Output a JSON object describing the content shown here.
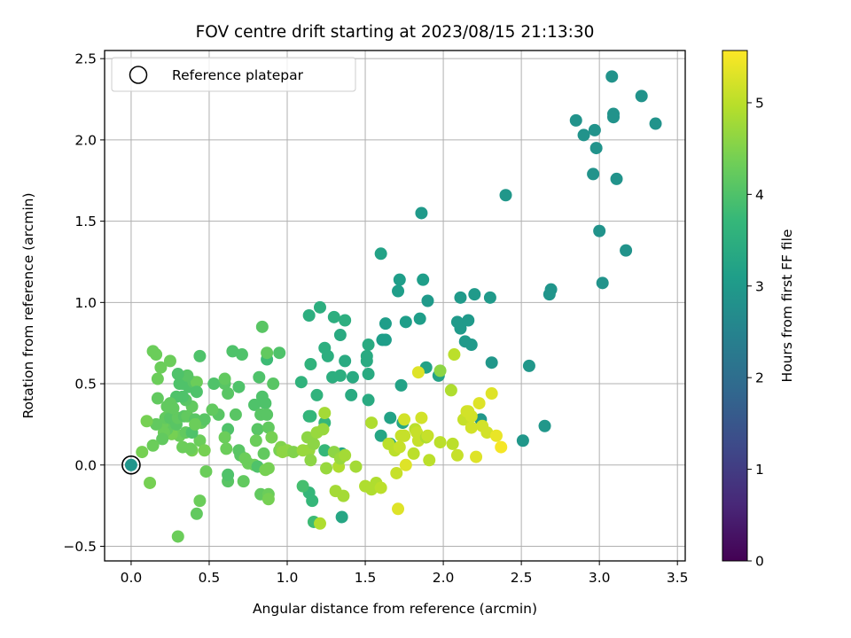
{
  "chart_data": {
    "type": "scatter",
    "title": "FOV centre drift starting at 2023/08/15 21:13:30",
    "xlabel": "Angular distance from reference (arcmin)",
    "ylabel": "Rotation from reference (arcmin)",
    "xlim": [
      -0.17,
      3.55
    ],
    "ylim": [
      -0.59,
      2.55
    ],
    "xticks": [
      0.0,
      0.5,
      1.0,
      1.5,
      2.0,
      2.5,
      3.0,
      3.5
    ],
    "xtick_labels": [
      "0.0",
      "0.5",
      "1.0",
      "1.5",
      "2.0",
      "2.5",
      "3.0",
      "3.5"
    ],
    "yticks": [
      -0.5,
      0.0,
      0.5,
      1.0,
      1.5,
      2.0,
      2.5
    ],
    "ytick_labels": [
      "−0.5",
      "0.0",
      "0.5",
      "1.0",
      "1.5",
      "2.0",
      "2.5"
    ],
    "grid": true,
    "legend": {
      "location": "upper-left",
      "entries": [
        "Reference platepar"
      ]
    },
    "reference_point": {
      "x": 0.0,
      "y": 0.0,
      "hours": 2.9
    },
    "colorbar": {
      "label": "Hours from first FF file",
      "min": 0,
      "max": 5.57,
      "colormap": "viridis",
      "ticks": [
        0,
        1,
        2,
        3,
        4,
        5
      ],
      "tick_labels": [
        "0",
        "1",
        "2",
        "3",
        "4",
        "5"
      ]
    },
    "colormap_stops": [
      "#440154",
      "#482878",
      "#3e4989",
      "#31688e",
      "#26828e",
      "#1f9e89",
      "#35b779",
      "#6ece58",
      "#b5de2b",
      "#fde725"
    ],
    "points": [
      [
        3.08,
        2.39,
        2.85
      ],
      [
        3.27,
        2.27,
        2.85
      ],
      [
        3.36,
        2.1,
        2.85
      ],
      [
        3.09,
        2.16,
        2.85
      ],
      [
        3.09,
        2.14,
        2.85
      ],
      [
        2.85,
        2.12,
        2.85
      ],
      [
        2.97,
        2.06,
        2.85
      ],
      [
        2.9,
        2.03,
        2.85
      ],
      [
        2.98,
        1.95,
        2.85
      ],
      [
        2.96,
        1.79,
        2.85
      ],
      [
        3.11,
        1.76,
        2.85
      ],
      [
        3.0,
        1.44,
        2.85
      ],
      [
        3.17,
        1.32,
        2.85
      ],
      [
        3.02,
        1.12,
        2.85
      ],
      [
        2.69,
        1.08,
        2.9
      ],
      [
        2.68,
        1.05,
        2.9
      ],
      [
        2.4,
        1.66,
        2.95
      ],
      [
        2.55,
        0.61,
        2.95
      ],
      [
        2.51,
        0.15,
        2.95
      ],
      [
        2.65,
        0.24,
        2.95
      ],
      [
        2.31,
        0.63,
        2.95
      ],
      [
        2.24,
        0.28,
        2.95
      ],
      [
        2.2,
        1.05,
        3.0
      ],
      [
        2.3,
        1.03,
        3.0
      ],
      [
        2.11,
        1.03,
        3.0
      ],
      [
        2.09,
        0.88,
        3.0
      ],
      [
        2.16,
        0.89,
        3.0
      ],
      [
        2.11,
        0.84,
        3.0
      ],
      [
        2.14,
        0.76,
        3.0
      ],
      [
        2.18,
        0.74,
        3.0
      ],
      [
        1.86,
        1.55,
        3.0
      ],
      [
        1.9,
        1.01,
        3.0
      ],
      [
        1.87,
        1.14,
        3.1
      ],
      [
        1.72,
        1.14,
        3.1
      ],
      [
        1.71,
        1.07,
        3.1
      ],
      [
        1.85,
        0.9,
        3.1
      ],
      [
        1.76,
        0.88,
        3.1
      ],
      [
        1.63,
        0.87,
        3.1
      ],
      [
        1.61,
        0.77,
        3.1
      ],
      [
        1.63,
        0.77,
        3.1
      ],
      [
        1.6,
        1.3,
        3.2
      ],
      [
        1.89,
        0.6,
        3.2
      ],
      [
        1.97,
        0.55,
        3.2
      ],
      [
        1.73,
        0.49,
        3.2
      ],
      [
        1.66,
        0.29,
        3.2
      ],
      [
        1.74,
        0.26,
        3.3
      ],
      [
        1.6,
        0.18,
        3.3
      ],
      [
        1.66,
        0.13,
        3.3
      ],
      [
        1.35,
        0.07,
        3.3
      ],
      [
        1.35,
        -0.32,
        3.3
      ],
      [
        1.52,
        0.74,
        3.4
      ],
      [
        1.51,
        0.67,
        3.4
      ],
      [
        1.51,
        0.64,
        3.4
      ],
      [
        1.52,
        0.56,
        3.4
      ],
      [
        1.52,
        0.4,
        3.4
      ],
      [
        1.42,
        0.54,
        3.4
      ],
      [
        1.41,
        0.43,
        3.4
      ],
      [
        1.37,
        0.64,
        3.4
      ],
      [
        1.34,
        0.8,
        3.4
      ],
      [
        1.37,
        0.89,
        3.5
      ],
      [
        1.3,
        0.91,
        3.5
      ],
      [
        1.21,
        0.97,
        3.5
      ],
      [
        1.14,
        0.92,
        3.5
      ],
      [
        1.24,
        0.72,
        3.5
      ],
      [
        1.26,
        0.67,
        3.5
      ],
      [
        1.29,
        0.54,
        3.5
      ],
      [
        1.34,
        0.55,
        3.5
      ],
      [
        1.09,
        0.51,
        3.6
      ],
      [
        1.15,
        0.62,
        3.6
      ],
      [
        1.19,
        0.43,
        3.6
      ],
      [
        1.14,
        0.3,
        3.6
      ],
      [
        1.15,
        0.3,
        3.7
      ],
      [
        1.24,
        0.26,
        3.7
      ],
      [
        1.24,
        0.09,
        3.7
      ],
      [
        1.14,
        -0.17,
        3.7
      ],
      [
        1.16,
        -0.22,
        3.7
      ],
      [
        1.17,
        -0.35,
        3.8
      ],
      [
        1.1,
        -0.13,
        3.9
      ],
      [
        0.87,
        0.65,
        3.8
      ],
      [
        0.95,
        0.69,
        4.0
      ],
      [
        0.87,
        0.69,
        4.2
      ],
      [
        0.84,
        0.85,
        4.1
      ],
      [
        0.71,
        0.68,
        4.0
      ],
      [
        0.65,
        0.7,
        4.0
      ],
      [
        0.44,
        0.67,
        4.0
      ],
      [
        0.82,
        0.54,
        4.0
      ],
      [
        0.84,
        0.42,
        4.0
      ],
      [
        0.86,
        0.38,
        4.0
      ],
      [
        0.79,
        0.37,
        4.0
      ],
      [
        0.91,
        0.5,
        4.1
      ],
      [
        0.69,
        0.48,
        4.0
      ],
      [
        0.6,
        0.5,
        4.1
      ],
      [
        0.62,
        0.44,
        4.1
      ],
      [
        0.53,
        0.5,
        4.0
      ],
      [
        0.6,
        0.53,
        4.2
      ],
      [
        0.67,
        0.31,
        4.1
      ],
      [
        0.56,
        0.31,
        4.1
      ],
      [
        0.52,
        0.34,
        4.2
      ],
      [
        0.83,
        0.31,
        4.1
      ],
      [
        0.87,
        0.31,
        4.1
      ],
      [
        0.81,
        0.22,
        4.1
      ],
      [
        0.88,
        0.23,
        4.2
      ],
      [
        0.85,
        0.07,
        4.2
      ],
      [
        0.8,
        0.15,
        4.3
      ],
      [
        0.62,
        0.22,
        4.0
      ],
      [
        0.6,
        0.17,
        4.3
      ],
      [
        0.61,
        0.1,
        4.3
      ],
      [
        0.69,
        0.09,
        4.1
      ],
      [
        0.7,
        0.06,
        4.1
      ],
      [
        0.73,
        0.04,
        4.3
      ],
      [
        0.75,
        0.01,
        4.3
      ],
      [
        0.79,
        0.0,
        4.3
      ],
      [
        0.81,
        -0.01,
        4.0
      ],
      [
        0.62,
        -0.1,
        4.1
      ],
      [
        0.62,
        -0.06,
        4.0
      ],
      [
        0.72,
        -0.1,
        4.2
      ],
      [
        0.83,
        -0.18,
        4.2
      ],
      [
        0.88,
        -0.18,
        4.3
      ],
      [
        0.88,
        -0.21,
        4.4
      ],
      [
        0.88,
        -0.02,
        4.4
      ],
      [
        0.86,
        -0.03,
        4.4
      ],
      [
        0.9,
        0.17,
        4.4
      ],
      [
        0.95,
        0.09,
        4.4
      ],
      [
        0.96,
        0.11,
        4.5
      ],
      [
        0.44,
        -0.22,
        4.3
      ],
      [
        0.42,
        -0.3,
        4.2
      ],
      [
        0.3,
        -0.44,
        4.3
      ],
      [
        0.48,
        -0.04,
        4.3
      ],
      [
        0.44,
        0.15,
        4.3
      ],
      [
        0.47,
        0.09,
        4.4
      ],
      [
        0.39,
        0.09,
        4.4
      ],
      [
        0.38,
        0.1,
        4.3
      ],
      [
        0.33,
        0.11,
        4.3
      ],
      [
        0.31,
        0.18,
        4.3
      ],
      [
        0.26,
        0.19,
        4.4
      ],
      [
        0.23,
        0.22,
        4.2
      ],
      [
        0.21,
        0.2,
        4.3
      ],
      [
        0.2,
        0.16,
        4.2
      ],
      [
        0.2,
        0.25,
        4.3
      ],
      [
        0.16,
        0.25,
        4.2
      ],
      [
        0.14,
        0.12,
        4.3
      ],
      [
        0.12,
        -0.11,
        4.4
      ],
      [
        0.07,
        0.08,
        4.4
      ],
      [
        0.1,
        0.27,
        4.4
      ],
      [
        0.22,
        0.29,
        4.2
      ],
      [
        0.25,
        0.29,
        4.1
      ],
      [
        0.29,
        0.25,
        4.1
      ],
      [
        0.3,
        0.29,
        4.2
      ],
      [
        0.34,
        0.3,
        4.1
      ],
      [
        0.36,
        0.3,
        4.2
      ],
      [
        0.39,
        0.36,
        4.2
      ],
      [
        0.41,
        0.28,
        4.1
      ],
      [
        0.45,
        0.26,
        4.2
      ],
      [
        0.47,
        0.28,
        4.1
      ],
      [
        0.35,
        0.2,
        4.2
      ],
      [
        0.39,
        0.2,
        4.0
      ],
      [
        0.41,
        0.25,
        4.3
      ],
      [
        0.35,
        0.4,
        4.1
      ],
      [
        0.33,
        0.42,
        4.0
      ],
      [
        0.29,
        0.42,
        4.0
      ],
      [
        0.25,
        0.38,
        4.2
      ],
      [
        0.27,
        0.35,
        4.2
      ],
      [
        0.23,
        0.36,
        4.2
      ],
      [
        0.31,
        0.5,
        4.0
      ],
      [
        0.33,
        0.5,
        4.0
      ],
      [
        0.37,
        0.48,
        4.0
      ],
      [
        0.4,
        0.51,
        4.1
      ],
      [
        0.42,
        0.51,
        4.3
      ],
      [
        0.42,
        0.45,
        4.0
      ],
      [
        0.36,
        0.55,
        4.1
      ],
      [
        0.3,
        0.56,
        4.0
      ],
      [
        0.25,
        0.64,
        4.3
      ],
      [
        0.19,
        0.6,
        4.3
      ],
      [
        0.16,
        0.68,
        4.3
      ],
      [
        0.14,
        0.7,
        4.3
      ],
      [
        0.17,
        0.53,
        4.3
      ],
      [
        0.17,
        0.41,
        4.2
      ],
      [
        0.97,
        0.08,
        4.6
      ],
      [
        1.0,
        0.09,
        4.6
      ],
      [
        1.04,
        0.08,
        4.5
      ],
      [
        1.1,
        0.09,
        4.7
      ],
      [
        1.13,
        0.17,
        4.6
      ],
      [
        1.14,
        0.09,
        4.7
      ],
      [
        1.15,
        0.03,
        4.6
      ],
      [
        1.17,
        0.13,
        4.6
      ],
      [
        1.19,
        0.2,
        4.7
      ],
      [
        1.23,
        0.22,
        4.7
      ],
      [
        1.24,
        0.32,
        4.8
      ],
      [
        1.25,
        -0.02,
        4.7
      ],
      [
        1.21,
        -0.36,
        4.9
      ],
      [
        1.3,
        0.08,
        4.6
      ],
      [
        1.33,
        -0.01,
        4.9
      ],
      [
        1.34,
        0.04,
        4.7
      ],
      [
        1.37,
        0.06,
        4.8
      ],
      [
        1.31,
        -0.16,
        4.8
      ],
      [
        1.36,
        -0.19,
        4.8
      ],
      [
        1.44,
        -0.01,
        4.8
      ],
      [
        1.5,
        -0.13,
        4.9
      ],
      [
        1.57,
        -0.11,
        4.9
      ],
      [
        1.54,
        -0.15,
        4.9
      ],
      [
        1.54,
        0.26,
        4.9
      ],
      [
        1.6,
        -0.14,
        5.0
      ],
      [
        1.7,
        -0.05,
        5.1
      ],
      [
        1.71,
        -0.27,
        5.3
      ],
      [
        1.65,
        0.13,
        5.0
      ],
      [
        1.69,
        0.09,
        5.0
      ],
      [
        1.72,
        0.11,
        5.1
      ],
      [
        1.75,
        0.18,
        5.2
      ],
      [
        1.76,
        0.0,
        5.3
      ],
      [
        1.75,
        0.18,
        5.1
      ],
      [
        1.81,
        0.07,
        5.0
      ],
      [
        1.82,
        0.22,
        5.0
      ],
      [
        1.84,
        0.15,
        5.1
      ],
      [
        1.83,
        0.2,
        5.1
      ],
      [
        1.86,
        0.29,
        5.2
      ],
      [
        1.89,
        0.17,
        4.9
      ],
      [
        1.91,
        0.03,
        5.0
      ],
      [
        1.9,
        0.18,
        5.1
      ],
      [
        1.98,
        0.14,
        5.0
      ],
      [
        2.06,
        0.13,
        5.0
      ],
      [
        2.05,
        0.46,
        4.9
      ],
      [
        2.07,
        0.68,
        5.0
      ],
      [
        2.09,
        0.06,
        5.1
      ],
      [
        2.13,
        0.28,
        5.1
      ],
      [
        2.15,
        0.33,
        5.2
      ],
      [
        2.16,
        0.33,
        5.2
      ],
      [
        2.18,
        0.23,
        5.2
      ],
      [
        2.18,
        0.3,
        5.2
      ],
      [
        2.21,
        0.05,
        5.3
      ],
      [
        2.23,
        0.38,
        5.3
      ],
      [
        2.25,
        0.24,
        5.2
      ],
      [
        2.28,
        0.2,
        5.2
      ],
      [
        2.31,
        0.44,
        5.3
      ],
      [
        2.34,
        0.18,
        5.4
      ],
      [
        2.37,
        0.11,
        5.5
      ],
      [
        1.84,
        0.57,
        5.3
      ],
      [
        1.98,
        0.58,
        4.6
      ],
      [
        1.75,
        0.28,
        5.2
      ],
      [
        1.73,
        0.18,
        5.1
      ],
      [
        0.0,
        0.0,
        2.9
      ]
    ]
  }
}
